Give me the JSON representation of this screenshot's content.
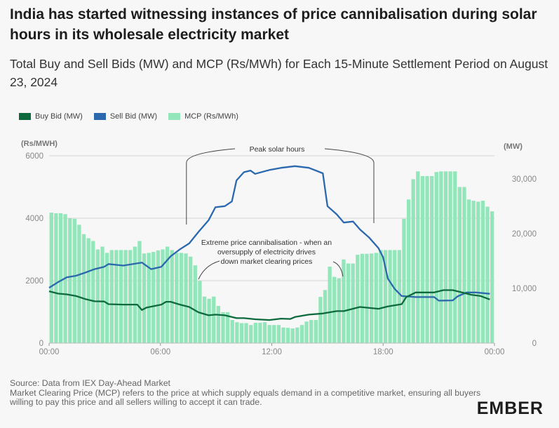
{
  "title": "India has started witnessing instances of price cannibalisation during solar hours in its wholesale electricity market",
  "subtitle": "Total Buy and Sell Bids (MW) and MCP (Rs/MWh) for Each 15-Minute Settlement Period on August 23, 2024",
  "source_lines": [
    "Source: Data from IEX Day-Ahead Market",
    "Market Clearing Price (MCP) refers to the price at which supply equals demand in a competitive market, ensuring all buyers willing to pay this price and all sellers willing to accept it can trade."
  ],
  "logo": "EMBER",
  "colors": {
    "buy": "#0d6a3c",
    "sell": "#2b68ad",
    "mcp": "#93e6b9"
  },
  "chart_data": {
    "type": "bar+line",
    "legend": [
      {
        "name": "Buy Bid (MW)",
        "color": "#0d6a3c"
      },
      {
        "name": "Sell Bid (MW)",
        "color": "#2b68ad"
      },
      {
        "name": "MCP (Rs/MWh)",
        "color": "#93e6b9"
      }
    ],
    "legend_position": "top-left",
    "left_axis": {
      "label": "(Rs/MWH)",
      "range": [
        0,
        6000
      ],
      "ticks": [
        "0",
        "2000",
        "4000",
        "6000"
      ],
      "tick_values": [
        0,
        2000,
        4000,
        6000
      ]
    },
    "right_axis": {
      "label": "(MW)",
      "range": [
        0,
        34200
      ],
      "ticks": [
        "0",
        "10,000",
        "20,000",
        "30,000"
      ],
      "tick_values": [
        0,
        10000,
        20000,
        30000
      ]
    },
    "x_axis": {
      "range_hours": [
        0,
        24
      ],
      "ticks": [
        "00:00",
        "06:00",
        "12:00",
        "18:00",
        "00:00"
      ],
      "tick_values": [
        0,
        6,
        12,
        18,
        24
      ]
    },
    "mcp": [
      4180,
      4160,
      4160,
      4130,
      4000,
      3980,
      3790,
      3490,
      3360,
      3270,
      3000,
      3090,
      2890,
      2980,
      2980,
      2980,
      2980,
      2980,
      3090,
      3270,
      2870,
      2890,
      2920,
      2970,
      3000,
      3090,
      2980,
      2890,
      2890,
      2870,
      2770,
      2490,
      1990,
      1490,
      1420,
      1490,
      1190,
      990,
      990,
      740,
      670,
      640,
      640,
      580,
      650,
      650,
      670,
      580,
      580,
      580,
      500,
      490,
      470,
      500,
      580,
      690,
      740,
      740,
      1480,
      1700,
      2450,
      2120,
      2080,
      2680,
      2550,
      2550,
      2830,
      2860,
      2860,
      2870,
      2890,
      2980,
      2980,
      2980,
      2980,
      2980,
      3980,
      4600,
      5250,
      5500,
      5350,
      5350,
      5350,
      5480,
      5500,
      5500,
      5500,
      5500,
      5000,
      5000,
      4600,
      4560,
      4530,
      4560,
      4370,
      4220
    ],
    "sell_bid": {
      "hours": [
        0,
        0.5,
        0.95,
        1.45,
        1.95,
        2.45,
        2.97,
        3.2,
        4.0,
        5.0,
        5.5,
        6.05,
        6.55,
        7.05,
        7.55,
        8.05,
        8.6,
        8.96,
        9.47,
        9.85,
        10.1,
        10.5,
        10.85,
        11.1,
        11.87,
        12.5,
        13.25,
        14.0,
        14.75,
        15.0,
        15.5,
        15.88,
        16.38,
        16.75,
        17.25,
        17.75,
        18.0,
        18.25,
        18.62,
        19.0,
        19.75,
        20.75,
        21.0,
        21.75,
        22.0,
        22.5,
        23.0,
        23.75
      ],
      "values": [
        10100,
        11160,
        12000,
        12300,
        12870,
        13500,
        13930,
        14440,
        14150,
        14700,
        13500,
        13930,
        15850,
        17130,
        18200,
        20300,
        22450,
        24800,
        25000,
        25860,
        29700,
        31200,
        31500,
        30900,
        31600,
        32000,
        32300,
        32000,
        31000,
        25000,
        23500,
        22000,
        22200,
        20750,
        19250,
        17340,
        15640,
        11800,
        9900,
        8600,
        8400,
        8400,
        7750,
        7800,
        8500,
        9250,
        9250,
        9000
      ]
    },
    "buy_bid": {
      "hours": [
        0,
        0.5,
        0.95,
        1.45,
        1.95,
        2.45,
        2.97,
        3.2,
        4.0,
        4.75,
        5.0,
        5.25,
        6.05,
        6.3,
        6.55,
        7.05,
        7.55,
        8.05,
        8.6,
        8.96,
        9.47,
        10.1,
        10.5,
        11.1,
        11.87,
        12.5,
        13.0,
        13.25,
        14.0,
        14.75,
        15.5,
        15.88,
        16.75,
        17.75,
        18.25,
        19.0,
        19.25,
        19.75,
        20.75,
        21.25,
        21.75,
        22.25,
        22.75,
        23.25,
        23.75
      ],
      "values": [
        9460,
        9030,
        8900,
        8600,
        8050,
        7630,
        7600,
        7110,
        7030,
        7030,
        6050,
        6480,
        7030,
        7540,
        7540,
        7030,
        6600,
        5620,
        5070,
        5200,
        5070,
        4560,
        4560,
        4350,
        4220,
        4470,
        4400,
        4770,
        5200,
        5410,
        5840,
        5840,
        6600,
        6260,
        6690,
        7110,
        8400,
        9250,
        9250,
        9670,
        9670,
        9250,
        8820,
        8600,
        7970
      ]
    },
    "annotations": {
      "peak": "Peak solar hours",
      "peak_range_hours": [
        7.4,
        17.5
      ],
      "cannibal_lines": [
        "Extreme price cannibalisation - when an",
        "oversupply of electricity drives",
        "down market clearing prices"
      ]
    }
  }
}
